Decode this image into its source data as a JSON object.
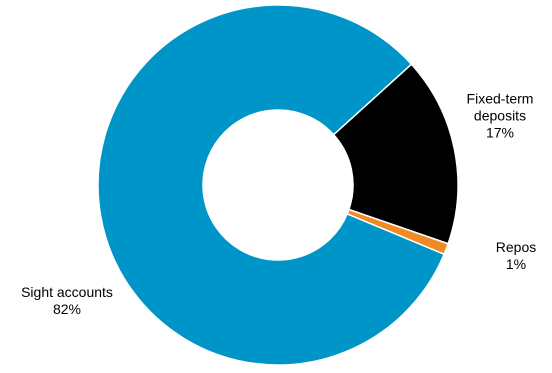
{
  "chart_data": {
    "type": "pie",
    "variant": "donut",
    "title": "",
    "categories": [
      "Sight accounts",
      "Fixed-term deposits",
      "Repos"
    ],
    "values": [
      82,
      17,
      1
    ],
    "unit": "%",
    "colors": {
      "Sight accounts": "#0095c8",
      "Fixed-term deposits": "#000000",
      "Repos": "#f08a24"
    },
    "labels": [
      {
        "category": "Sight accounts",
        "lines": [
          "Sight accounts"
        ],
        "value_text": "82%"
      },
      {
        "category": "Fixed-term deposits",
        "lines": [
          "Fixed-term",
          "deposits"
        ],
        "value_text": "17%"
      },
      {
        "category": "Repos",
        "lines": [
          "Repos"
        ],
        "value_text": "1%"
      }
    ],
    "legend": "none"
  }
}
